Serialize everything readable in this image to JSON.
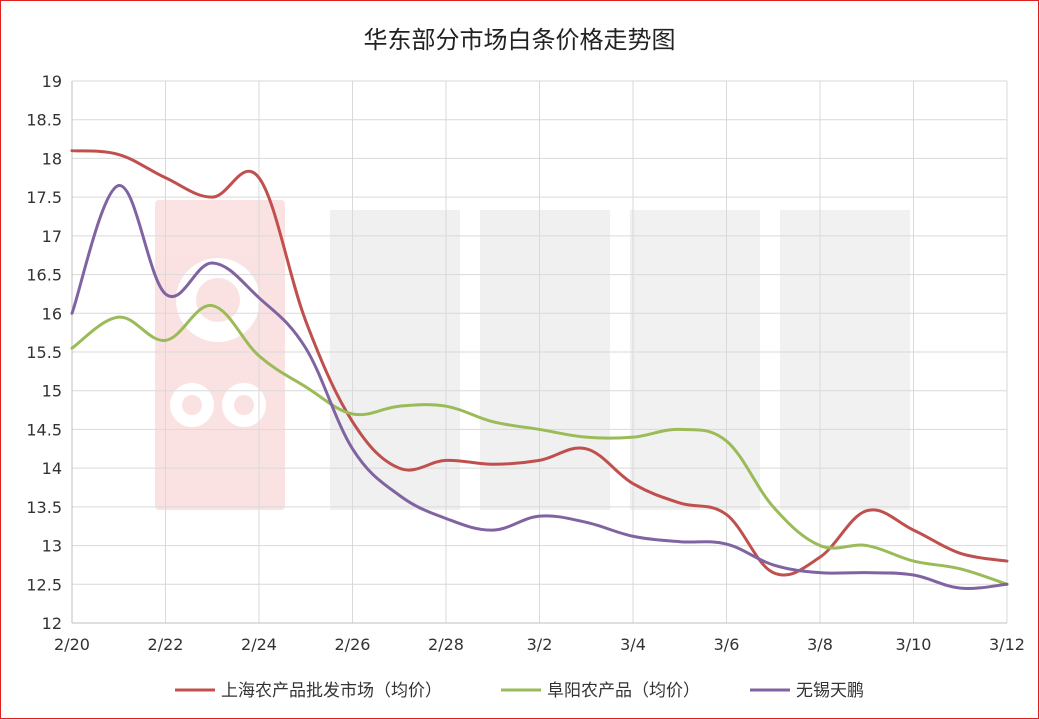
{
  "chart_data": {
    "type": "line",
    "title": "华东部分市场白条价格走势图",
    "xlabel": "",
    "ylabel": "",
    "x": [
      "2/20",
      "2/21",
      "2/22",
      "2/23",
      "2/24",
      "2/25",
      "2/26",
      "2/27",
      "2/28",
      "3/1",
      "3/2",
      "3/3",
      "3/4",
      "3/5",
      "3/6",
      "3/7",
      "3/8",
      "3/9",
      "3/10",
      "3/11",
      "3/12"
    ],
    "x_tick_labels": [
      "2/20",
      "2/22",
      "2/24",
      "2/26",
      "2/28",
      "3/2",
      "3/4",
      "3/6",
      "3/8",
      "3/10",
      "3/12"
    ],
    "ylim": [
      12,
      19
    ],
    "y_ticks": [
      "12",
      "12.5",
      "13",
      "13.5",
      "14",
      "14.5",
      "15",
      "15.5",
      "16",
      "16.5",
      "17",
      "17.5",
      "18",
      "18.5",
      "19"
    ],
    "grid": true,
    "legend": "bottom",
    "series": [
      {
        "name": "上海农产品批发市场（均价）",
        "color": "#c0504d",
        "values": [
          18.1,
          18.05,
          17.75,
          17.5,
          17.75,
          15.9,
          14.6,
          14.0,
          14.1,
          14.05,
          14.1,
          14.25,
          13.8,
          13.55,
          13.4,
          12.65,
          12.85,
          13.45,
          13.2,
          12.9,
          12.8
        ]
      },
      {
        "name": "阜阳农产品（均价）",
        "color": "#9bbb59",
        "values": [
          15.55,
          15.95,
          15.65,
          16.1,
          15.45,
          15.05,
          14.7,
          14.8,
          14.8,
          14.6,
          14.5,
          14.4,
          14.4,
          14.5,
          14.35,
          13.5,
          13.0,
          13.0,
          12.8,
          12.7,
          12.5
        ]
      },
      {
        "name": "无锡天鹏",
        "color": "#8064a2",
        "values": [
          16.0,
          17.65,
          16.25,
          16.65,
          16.2,
          15.55,
          14.25,
          13.65,
          13.35,
          13.2,
          13.38,
          13.3,
          13.12,
          13.05,
          13.02,
          12.75,
          12.65,
          12.65,
          12.62,
          12.45,
          12.5
        ]
      }
    ]
  }
}
